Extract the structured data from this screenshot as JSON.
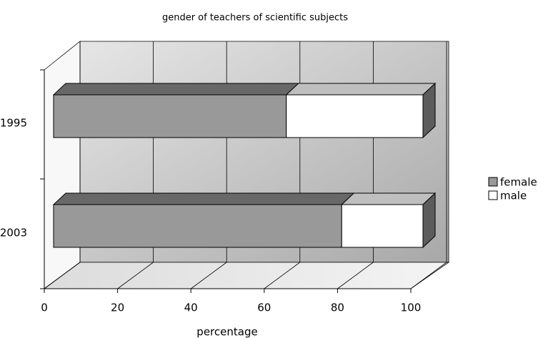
{
  "chart_data": {
    "type": "bar3d_stacked_horizontal",
    "title": "gender of teachers of scientific subjects",
    "xlabel": "percentage",
    "categories": [
      "1995",
      "2003"
    ],
    "series": [
      {
        "name": "female",
        "color": "#999999",
        "values": [
          63,
          78
        ]
      },
      {
        "name": "male",
        "color": "#ffffff",
        "values": [
          37,
          22
        ]
      }
    ],
    "xlim": [
      0,
      100
    ],
    "xticks": [
      0,
      20,
      40,
      60,
      80,
      100
    ],
    "grid": true,
    "legend": "right"
  }
}
